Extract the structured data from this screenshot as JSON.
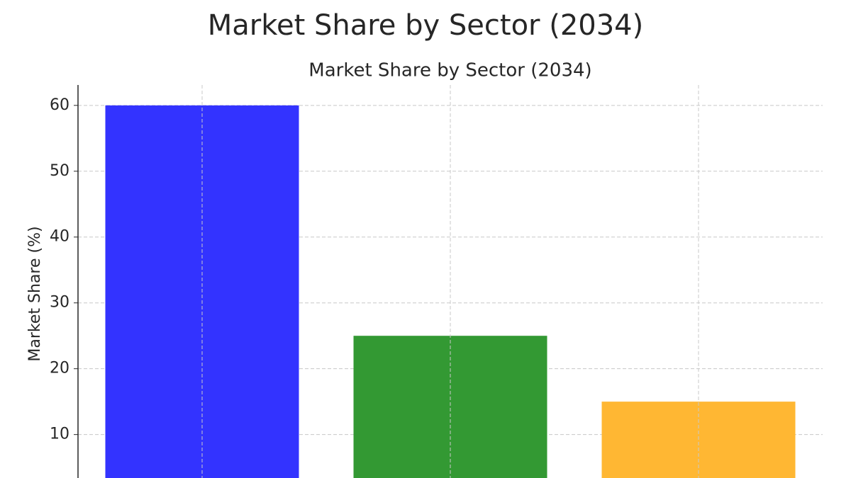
{
  "chart_data": {
    "type": "bar",
    "title": "Market Share by Sector (2034)",
    "subtitle": "Market Share by Sector (2034)",
    "y_label": "Market Share (%)",
    "categories": [
      null,
      null,
      null
    ],
    "values": [
      60,
      25,
      15
    ],
    "colors": [
      "#3333ff",
      "#339933",
      "#ffb733"
    ],
    "ylim": [
      3.4,
      63.1
    ],
    "yticks": [
      10,
      20,
      30,
      40,
      50,
      60
    ],
    "grid": true
  }
}
